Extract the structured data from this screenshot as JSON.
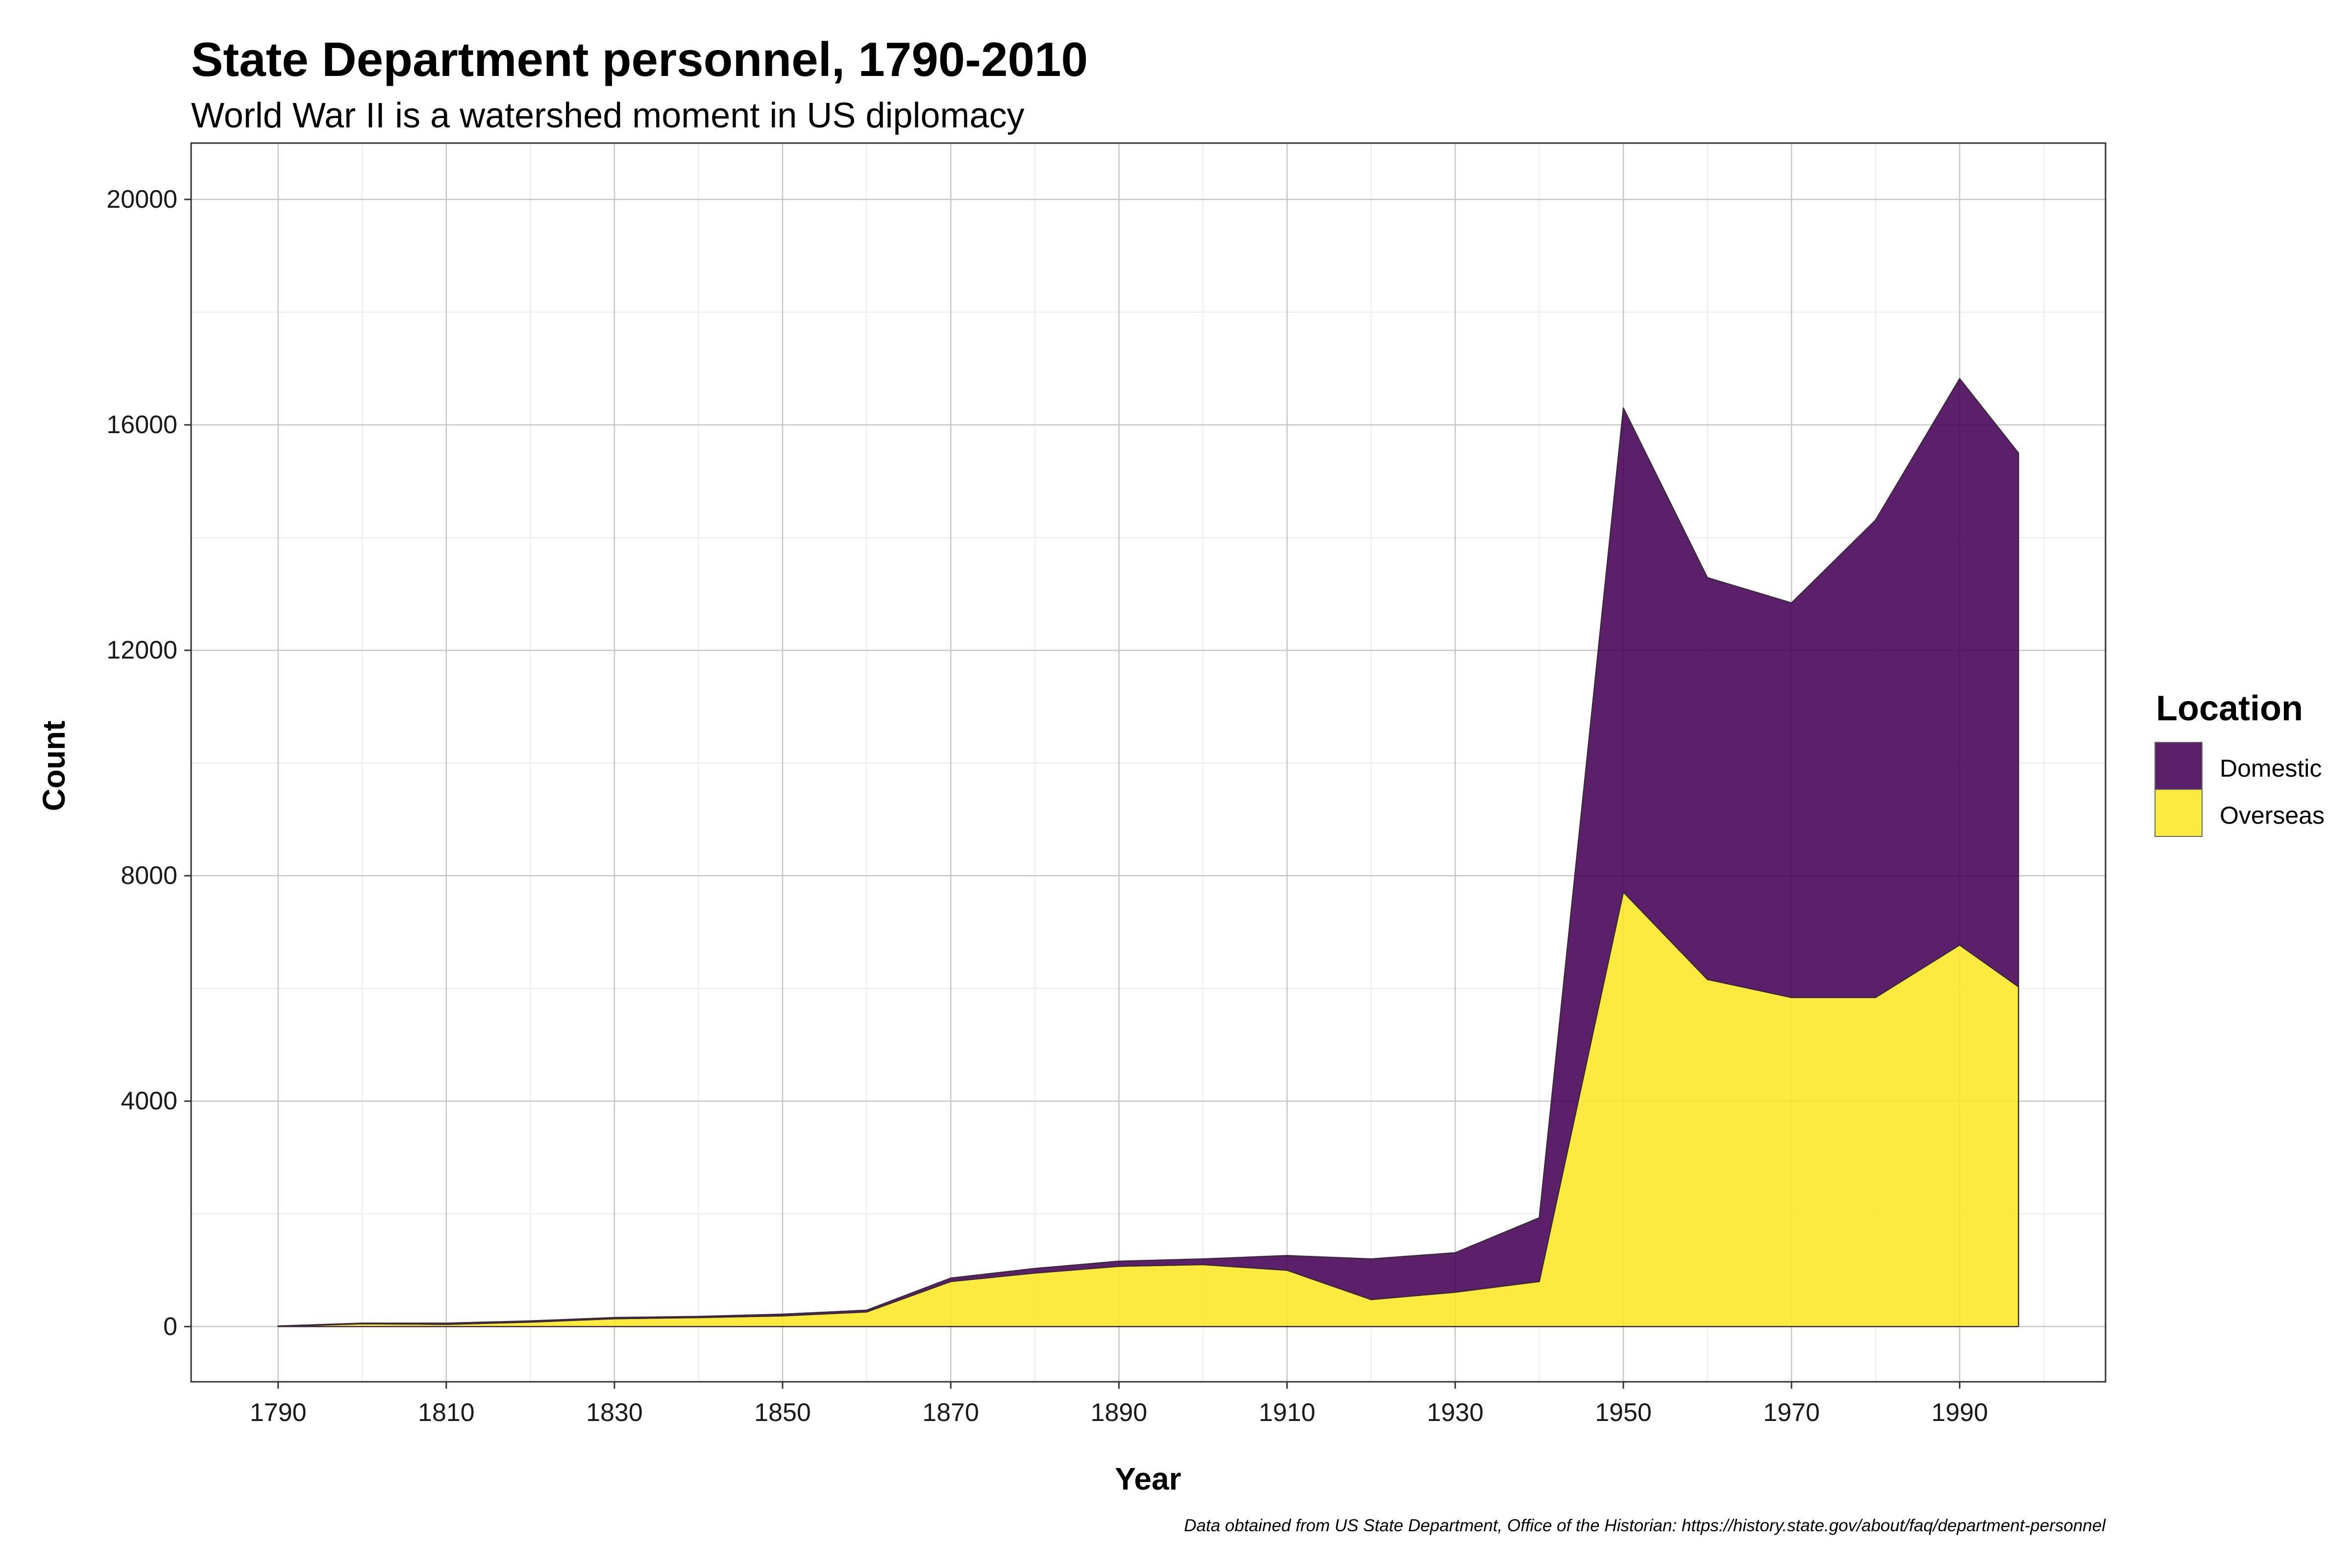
{
  "chart_data": {
    "type": "area",
    "stacked": true,
    "title": "State Department personnel, 1790-2010",
    "subtitle": "World War II is a watershed moment in US diplomacy",
    "xlabel": "Year",
    "ylabel": "Count",
    "caption": "Data obtained from US State Department, Office of the Historian: https://history.state.gov/about/faq/department-personnel",
    "xlim": [
      1779.65,
      2007.35
    ],
    "ylim": [
      -980,
      21000
    ],
    "x_ticks": [
      1790,
      1810,
      1830,
      1850,
      1870,
      1890,
      1910,
      1930,
      1950,
      1970,
      1990
    ],
    "y_ticks": [
      0,
      4000,
      8000,
      12000,
      16000,
      20000
    ],
    "grid": true,
    "legend": {
      "title": "Location",
      "placement": "right",
      "entries": [
        "Domestic",
        "Overseas"
      ]
    },
    "x": [
      1790,
      1800,
      1810,
      1820,
      1830,
      1840,
      1850,
      1860,
      1870,
      1880,
      1890,
      1900,
      1910,
      1920,
      1930,
      1940,
      1950,
      1960,
      1970,
      1980,
      1990,
      1997
    ],
    "series": [
      {
        "name": "Overseas",
        "color": "#fde725",
        "values": [
          2,
          50,
          40,
          80,
          140,
          160,
          190,
          260,
          800,
          950,
          1070,
          1100,
          1000,
          480,
          610,
          800,
          7710,
          6160,
          5840,
          5840,
          6770,
          6030
        ]
      },
      {
        "name": "Domestic",
        "color": "#440154",
        "values": [
          8,
          10,
          20,
          20,
          20,
          20,
          30,
          30,
          60,
          80,
          90,
          100,
          260,
          720,
          700,
          1130,
          8590,
          7130,
          7000,
          8470,
          10050,
          9470
        ]
      }
    ]
  }
}
